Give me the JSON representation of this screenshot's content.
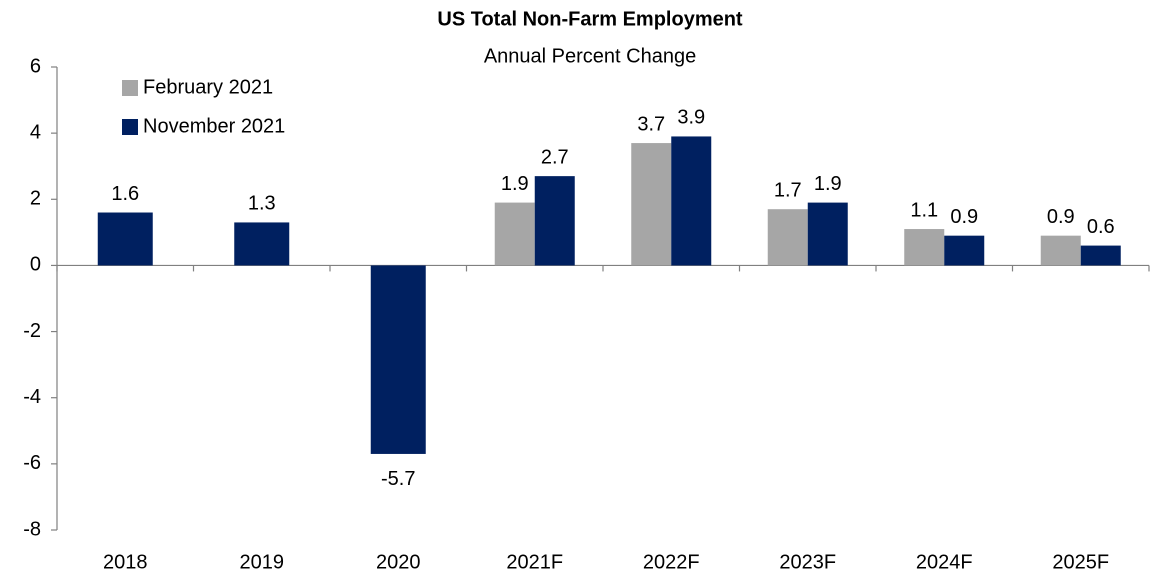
{
  "chart_data": {
    "type": "bar",
    "title": "US Total Non-Farm Employment",
    "subtitle": "Annual Percent Change",
    "categories": [
      "2018",
      "2019",
      "2020",
      "2021F",
      "2022F",
      "2023F",
      "2024F",
      "2025F"
    ],
    "series": [
      {
        "name": "February 2021",
        "color": "#a6a6a6",
        "values": [
          null,
          null,
          null,
          1.9,
          3.7,
          1.7,
          1.1,
          0.9
        ]
      },
      {
        "name": "November 2021",
        "color": "#002060",
        "values": [
          1.6,
          1.3,
          -5.7,
          2.7,
          3.9,
          1.9,
          0.9,
          0.6
        ]
      }
    ],
    "ylim": [
      -8,
      6
    ],
    "yticks": [
      -8,
      -6,
      -4,
      -2,
      0,
      2,
      4,
      6
    ],
    "grid": false,
    "legend": "upper left"
  }
}
